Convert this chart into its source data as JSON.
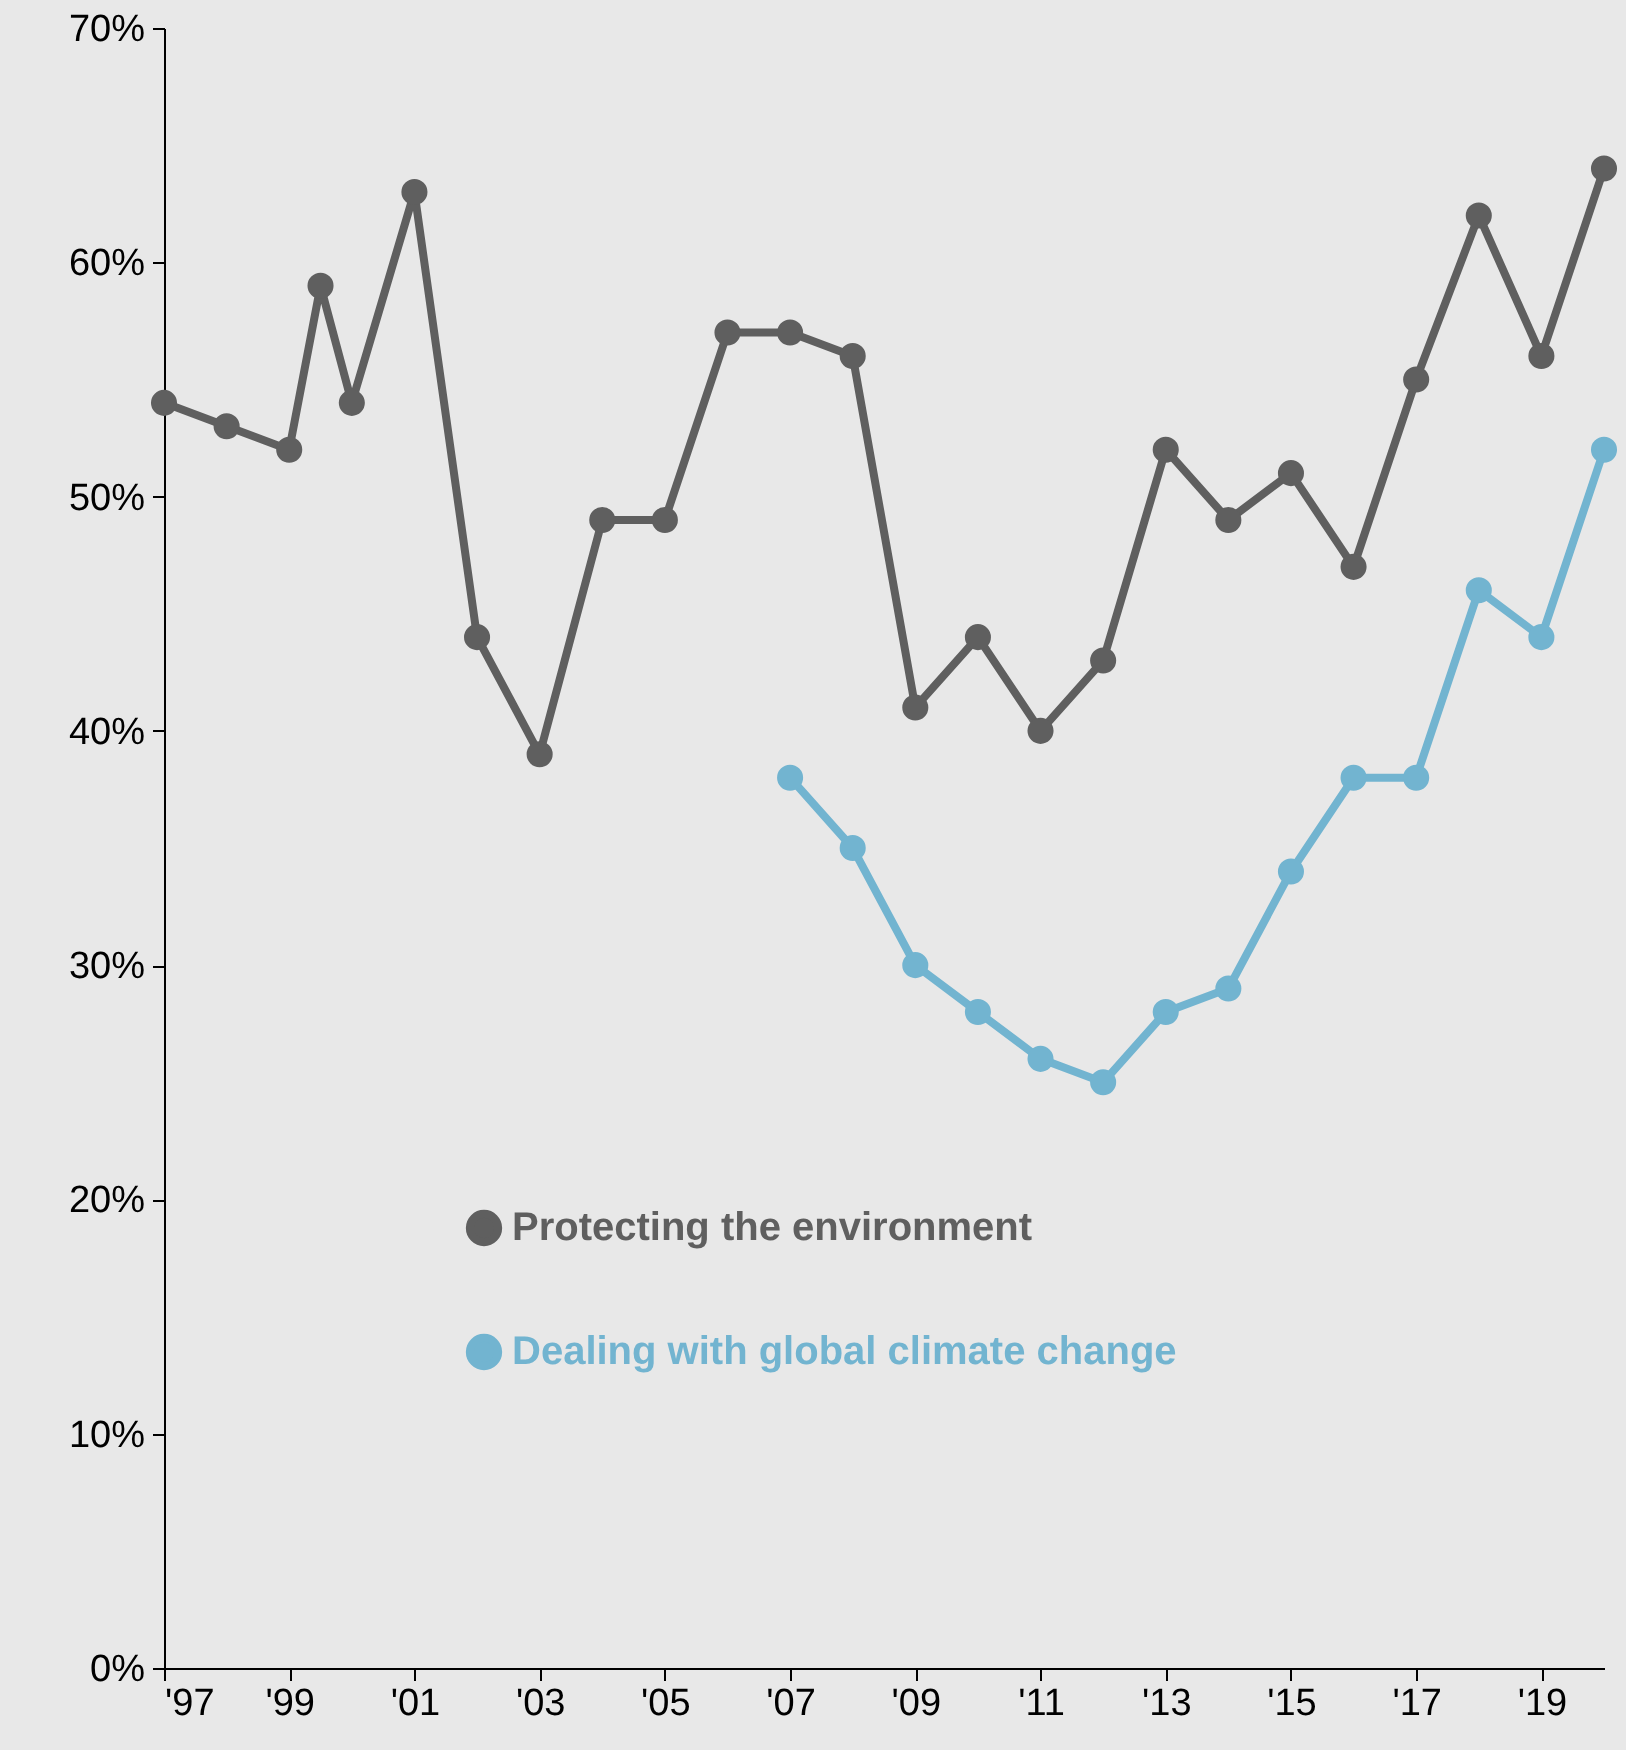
{
  "chart_data": {
    "type": "line",
    "x": [
      1997,
      1998,
      1999,
      1999.5,
      2000,
      2001,
      2002,
      2003,
      2004,
      2005,
      2006,
      2007,
      2008,
      2009,
      2010,
      2011,
      2012,
      2013,
      2014,
      2015,
      2016,
      2017,
      2018,
      2019,
      2020
    ],
    "series": [
      {
        "name": "Protecting the environment",
        "color": "#5f5f5f",
        "values": [
          54,
          53,
          52,
          59,
          54,
          63,
          44,
          39,
          49,
          49,
          57,
          57,
          56,
          41,
          44,
          40,
          43,
          52,
          49,
          51,
          47,
          55,
          62,
          56,
          64
        ]
      },
      {
        "name": "Dealing with global climate change",
        "color": "#72b4d0",
        "x": [
          2007,
          2008,
          2009,
          2010,
          2011,
          2012,
          2013,
          2014,
          2015,
          2016,
          2017,
          2018,
          2019,
          2020
        ],
        "values": [
          38,
          35,
          30,
          28,
          26,
          25,
          28,
          29,
          34,
          38,
          38,
          46,
          44,
          52
        ]
      }
    ],
    "xlim": [
      1997,
      2020
    ],
    "xticks": [
      {
        "value": 1997,
        "label": "'97"
      },
      {
        "value": 1999,
        "label": "'99"
      },
      {
        "value": 2001,
        "label": "'01"
      },
      {
        "value": 2003,
        "label": "'03"
      },
      {
        "value": 2005,
        "label": "'05"
      },
      {
        "value": 2007,
        "label": "'07"
      },
      {
        "value": 2009,
        "label": "'09"
      },
      {
        "value": 2011,
        "label": "'11"
      },
      {
        "value": 2013,
        "label": "'13"
      },
      {
        "value": 2015,
        "label": "'15"
      },
      {
        "value": 2017,
        "label": "'17"
      },
      {
        "value": 2019,
        "label": "'19"
      }
    ],
    "ylim": [
      0,
      70
    ],
    "yticks": [
      {
        "value": 0,
        "label": "0%"
      },
      {
        "value": 10,
        "label": "10%"
      },
      {
        "value": 20,
        "label": "20%"
      },
      {
        "value": 30,
        "label": "30%"
      },
      {
        "value": 40,
        "label": "40%"
      },
      {
        "value": 50,
        "label": "50%"
      },
      {
        "value": 60,
        "label": "60%"
      },
      {
        "value": 70,
        "label": "70%"
      }
    ],
    "grid": false,
    "legend": "bottom left",
    "marker": "circle",
    "line_style": "solid"
  }
}
